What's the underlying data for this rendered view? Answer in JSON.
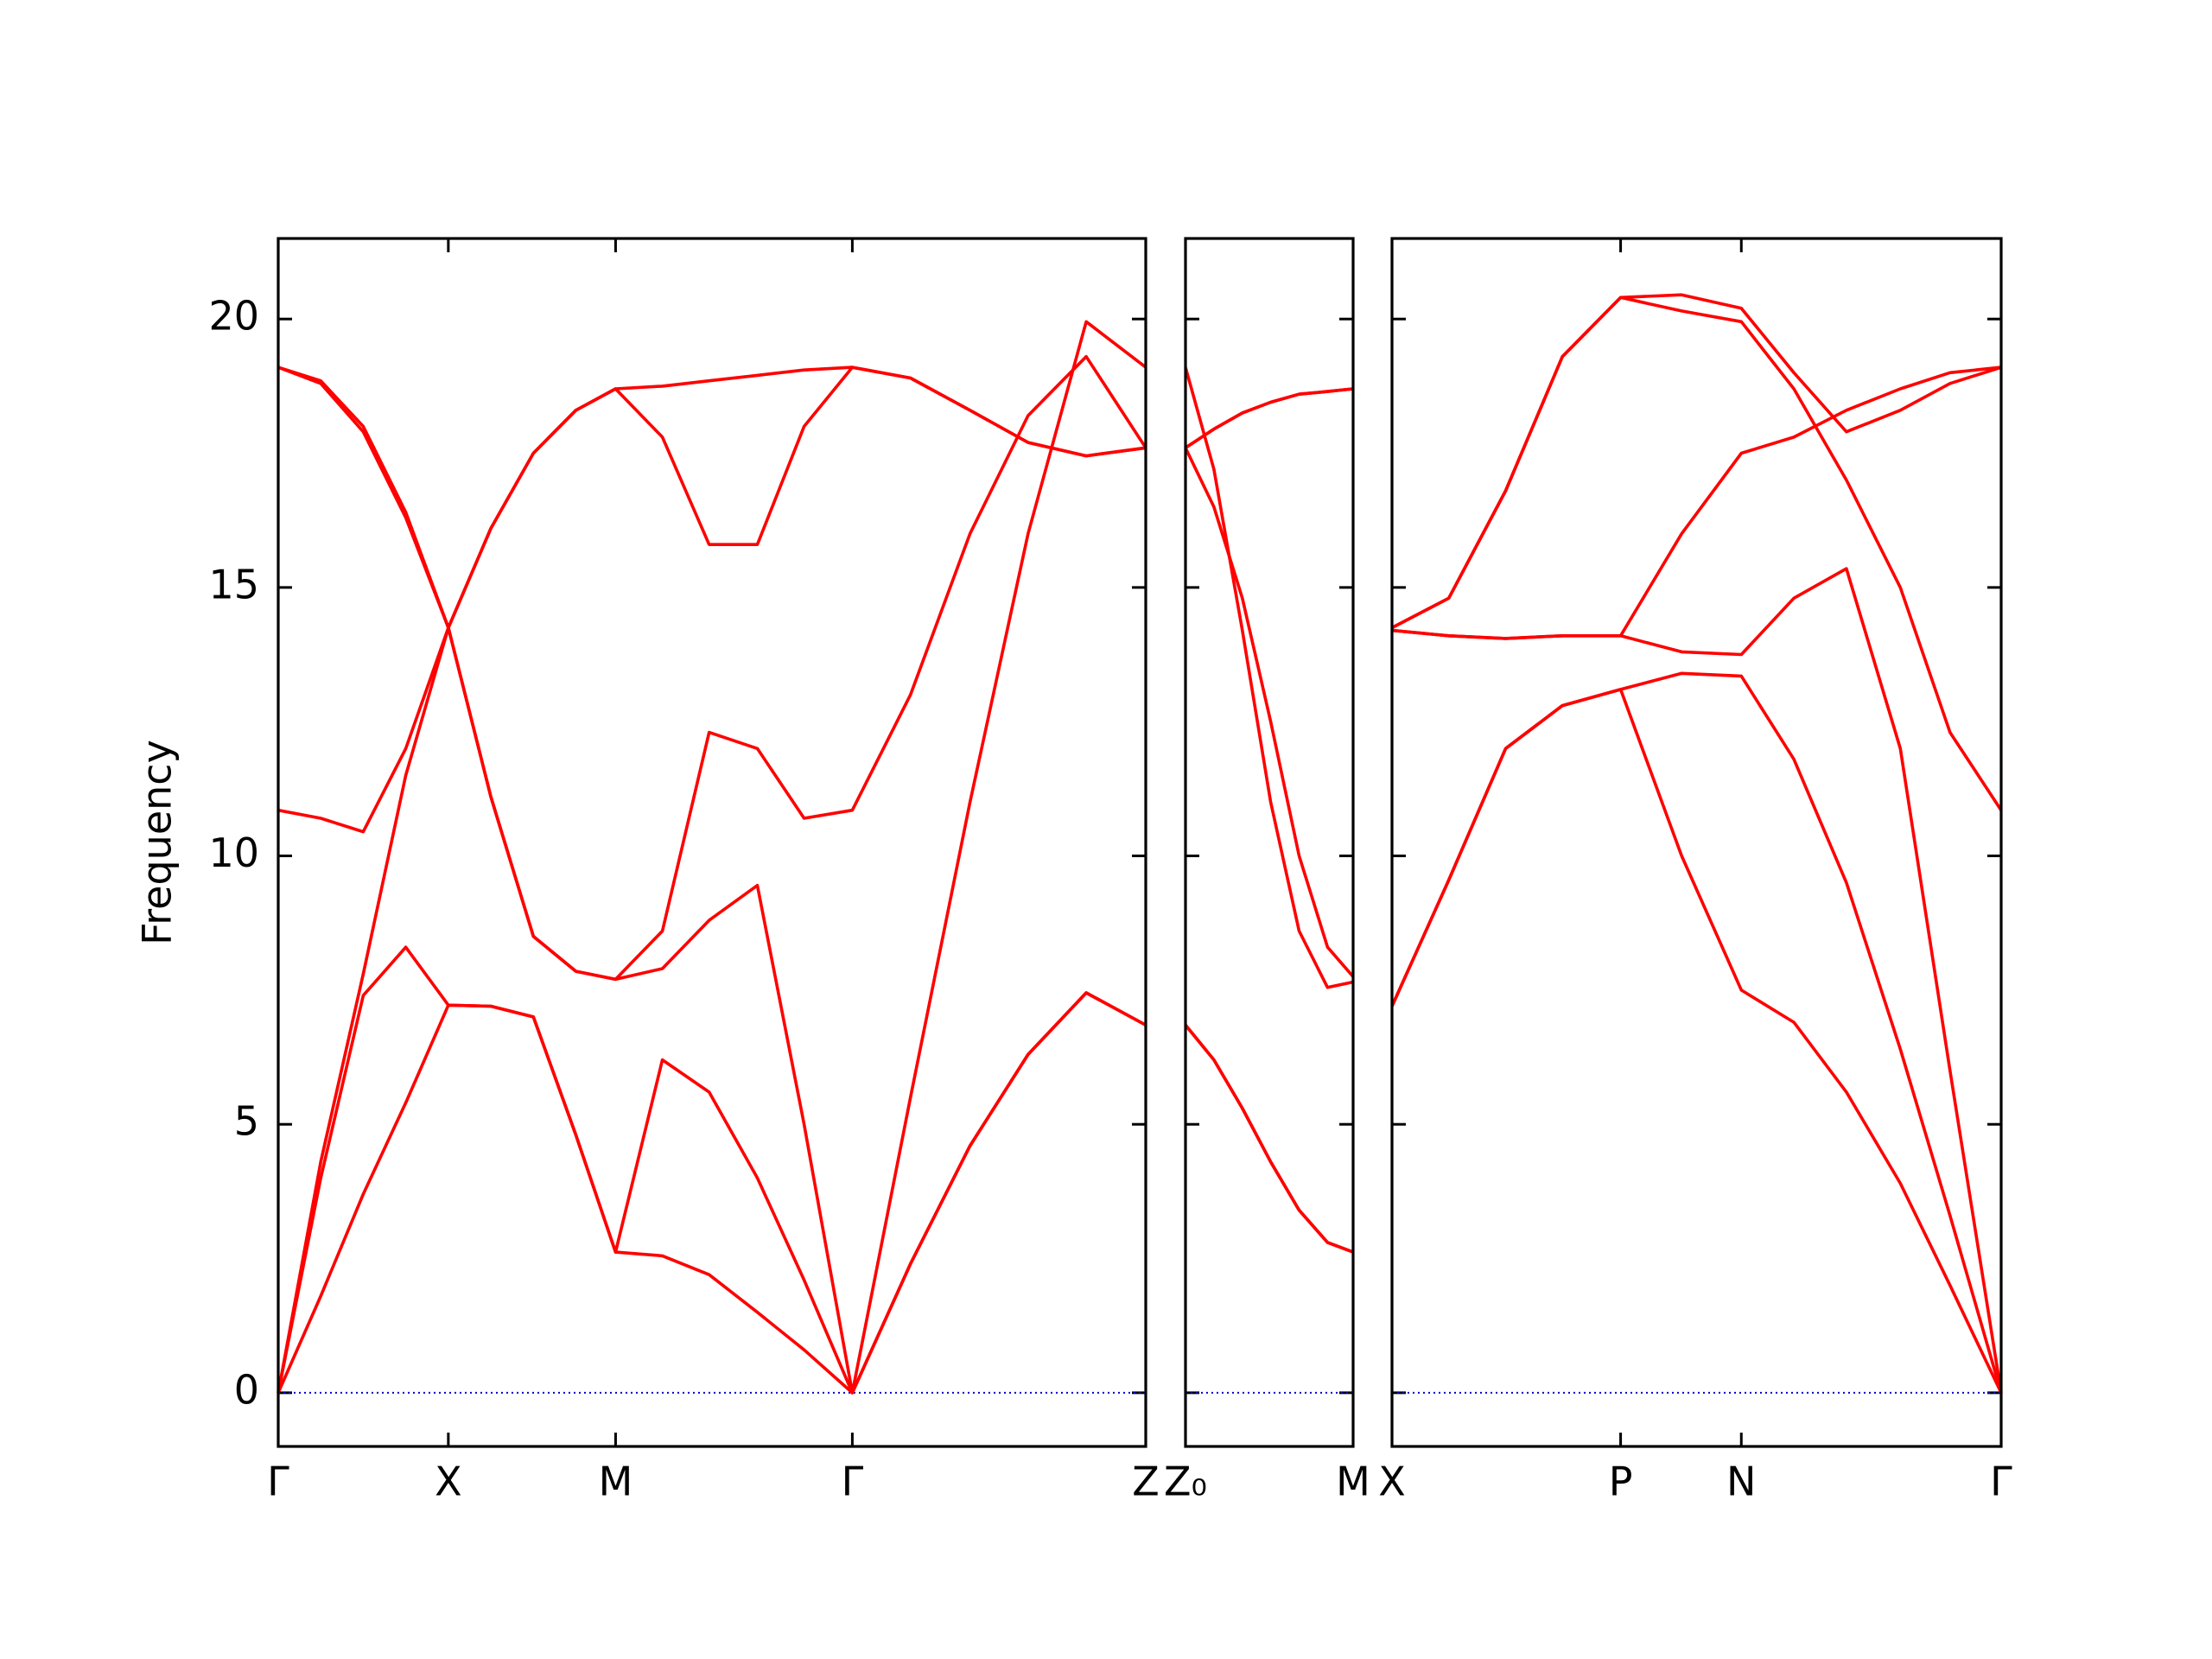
{
  "chart_data": [
    {
      "type": "line",
      "ylabel": "Frequency",
      "ytick_labels": true,
      "ylim": [
        -1,
        21.5
      ],
      "yticks": [
        0,
        5,
        10,
        15,
        20
      ],
      "xlim": [
        0,
        6.12
      ],
      "xticks": [
        {
          "value": 0,
          "label": "Γ"
        },
        {
          "value": 1.2,
          "label": "X"
        },
        {
          "value": 2.38,
          "label": "M"
        },
        {
          "value": 4.05,
          "label": "Γ"
        },
        {
          "value": 6.12,
          "label": "Z"
        }
      ],
      "hline": {
        "y": 0,
        "color": "#0000cc"
      },
      "x": [
        0,
        0.3,
        0.6,
        0.9,
        1.2,
        1.5,
        1.8,
        2.1,
        2.38,
        2.71,
        3.04,
        3.38,
        3.71,
        4.05,
        4.46,
        4.88,
        5.29,
        5.7,
        6.12
      ],
      "series": [
        {
          "color": "#ff0000",
          "values": [
            0,
            1.8,
            3.7,
            5.4,
            7.22,
            7.2,
            7.0,
            4.8,
            2.62,
            2.55,
            2.2,
            1.5,
            0.8,
            0,
            2.4,
            4.6,
            6.3,
            7.45,
            6.85
          ]
        },
        {
          "color": "#ff0000",
          "values": [
            0,
            4.0,
            7.4,
            8.3,
            7.22,
            7.2,
            7.0,
            4.8,
            2.62,
            6.2,
            5.6,
            4.0,
            2.1,
            0,
            2.4,
            4.6,
            6.3,
            7.45,
            6.85
          ]
        },
        {
          "color": "#ff0000",
          "values": [
            0,
            4.3,
            7.8,
            11.5,
            14.25,
            11.1,
            8.5,
            7.85,
            7.7,
            7.9,
            8.8,
            9.45,
            5.0,
            0,
            5.5,
            11.0,
            16.0,
            19.95,
            19.1
          ]
        },
        {
          "color": "#ff0000",
          "values": [
            10.85,
            10.7,
            10.45,
            12.0,
            14.25,
            11.1,
            8.5,
            7.85,
            7.7,
            8.6,
            12.3,
            12.0,
            10.7,
            10.85,
            13.0,
            16.0,
            18.2,
            19.3,
            17.6
          ]
        },
        {
          "color": "#ff0000",
          "values": [
            19.1,
            18.8,
            17.9,
            16.3,
            14.25,
            16.1,
            17.5,
            18.3,
            18.7,
            17.8,
            15.8,
            15.8,
            18.0,
            19.1,
            18.9,
            18.3,
            17.7,
            17.45,
            17.6
          ]
        },
        {
          "color": "#ff0000",
          "values": [
            19.1,
            18.85,
            18.0,
            16.4,
            14.25,
            16.1,
            17.5,
            18.3,
            18.7,
            18.75,
            18.85,
            18.95,
            19.05,
            19.1,
            18.9,
            18.3,
            17.7,
            17.45,
            17.6
          ]
        }
      ]
    },
    {
      "type": "line",
      "ylim": [
        -1,
        21.5
      ],
      "yticks": [
        0,
        5,
        10,
        15,
        20
      ],
      "xlim": [
        0,
        1.18
      ],
      "xticks": [
        {
          "value": 0,
          "label": "Z₀"
        },
        {
          "value": 1.18,
          "label": "M"
        }
      ],
      "hline": {
        "y": 0,
        "color": "#0000cc"
      },
      "x": [
        0,
        0.2,
        0.4,
        0.6,
        0.8,
        1.0,
        1.18
      ],
      "series": [
        {
          "color": "#ff0000",
          "values": [
            6.85,
            6.2,
            5.3,
            4.3,
            3.4,
            2.8,
            2.62
          ]
        },
        {
          "color": "#ff0000",
          "values": [
            6.85,
            6.2,
            5.3,
            4.3,
            3.4,
            2.8,
            2.62
          ]
        },
        {
          "color": "#ff0000",
          "values": [
            19.1,
            17.2,
            14.2,
            11.0,
            8.6,
            7.55,
            7.65
          ]
        },
        {
          "color": "#ff0000",
          "values": [
            17.6,
            16.5,
            14.8,
            12.5,
            10.0,
            8.3,
            7.75
          ]
        },
        {
          "color": "#ff0000",
          "values": [
            17.6,
            17.95,
            18.25,
            18.45,
            18.6,
            18.65,
            18.7
          ]
        },
        {
          "color": "#ff0000",
          "values": [
            17.6,
            17.95,
            18.25,
            18.45,
            18.6,
            18.65,
            18.7
          ]
        }
      ]
    },
    {
      "type": "line",
      "ylim": [
        -1,
        21.5
      ],
      "yticks": [
        0,
        5,
        10,
        15,
        20
      ],
      "xlim": [
        0,
        4.29
      ],
      "xticks": [
        {
          "value": 0,
          "label": "X"
        },
        {
          "value": 1.61,
          "label": "P"
        },
        {
          "value": 2.46,
          "label": "N"
        },
        {
          "value": 4.29,
          "label": "Γ"
        }
      ],
      "hline": {
        "y": 0,
        "color": "#0000cc"
      },
      "x": [
        0,
        0.4,
        0.8,
        1.2,
        1.61,
        2.04,
        2.46,
        2.83,
        3.2,
        3.58,
        3.93,
        4.29
      ],
      "series": [
        {
          "color": "#ff0000",
          "values": [
            7.2,
            9.55,
            12.0,
            12.8,
            13.1,
            10.0,
            7.5,
            6.9,
            5.6,
            3.9,
            2.0,
            0
          ]
        },
        {
          "color": "#ff0000",
          "values": [
            7.2,
            9.55,
            12.0,
            12.8,
            13.1,
            13.4,
            13.35,
            11.8,
            9.5,
            6.4,
            3.3,
            0
          ]
        },
        {
          "color": "#ff0000",
          "values": [
            14.2,
            14.1,
            14.05,
            14.1,
            14.1,
            13.8,
            13.75,
            14.8,
            15.35,
            12.0,
            6.0,
            0
          ]
        },
        {
          "color": "#ff0000",
          "values": [
            14.25,
            14.8,
            16.8,
            19.3,
            20.4,
            20.15,
            19.95,
            18.7,
            17.0,
            15.0,
            12.3,
            10.85
          ]
        },
        {
          "color": "#ff0000",
          "values": [
            14.25,
            14.8,
            16.8,
            19.3,
            20.4,
            20.45,
            20.2,
            19.0,
            17.9,
            18.3,
            18.8,
            19.1
          ]
        },
        {
          "color": "#ff0000",
          "values": [
            14.2,
            14.1,
            14.05,
            14.1,
            14.1,
            16.0,
            17.5,
            17.8,
            18.3,
            18.7,
            19.0,
            19.1
          ]
        }
      ]
    }
  ]
}
